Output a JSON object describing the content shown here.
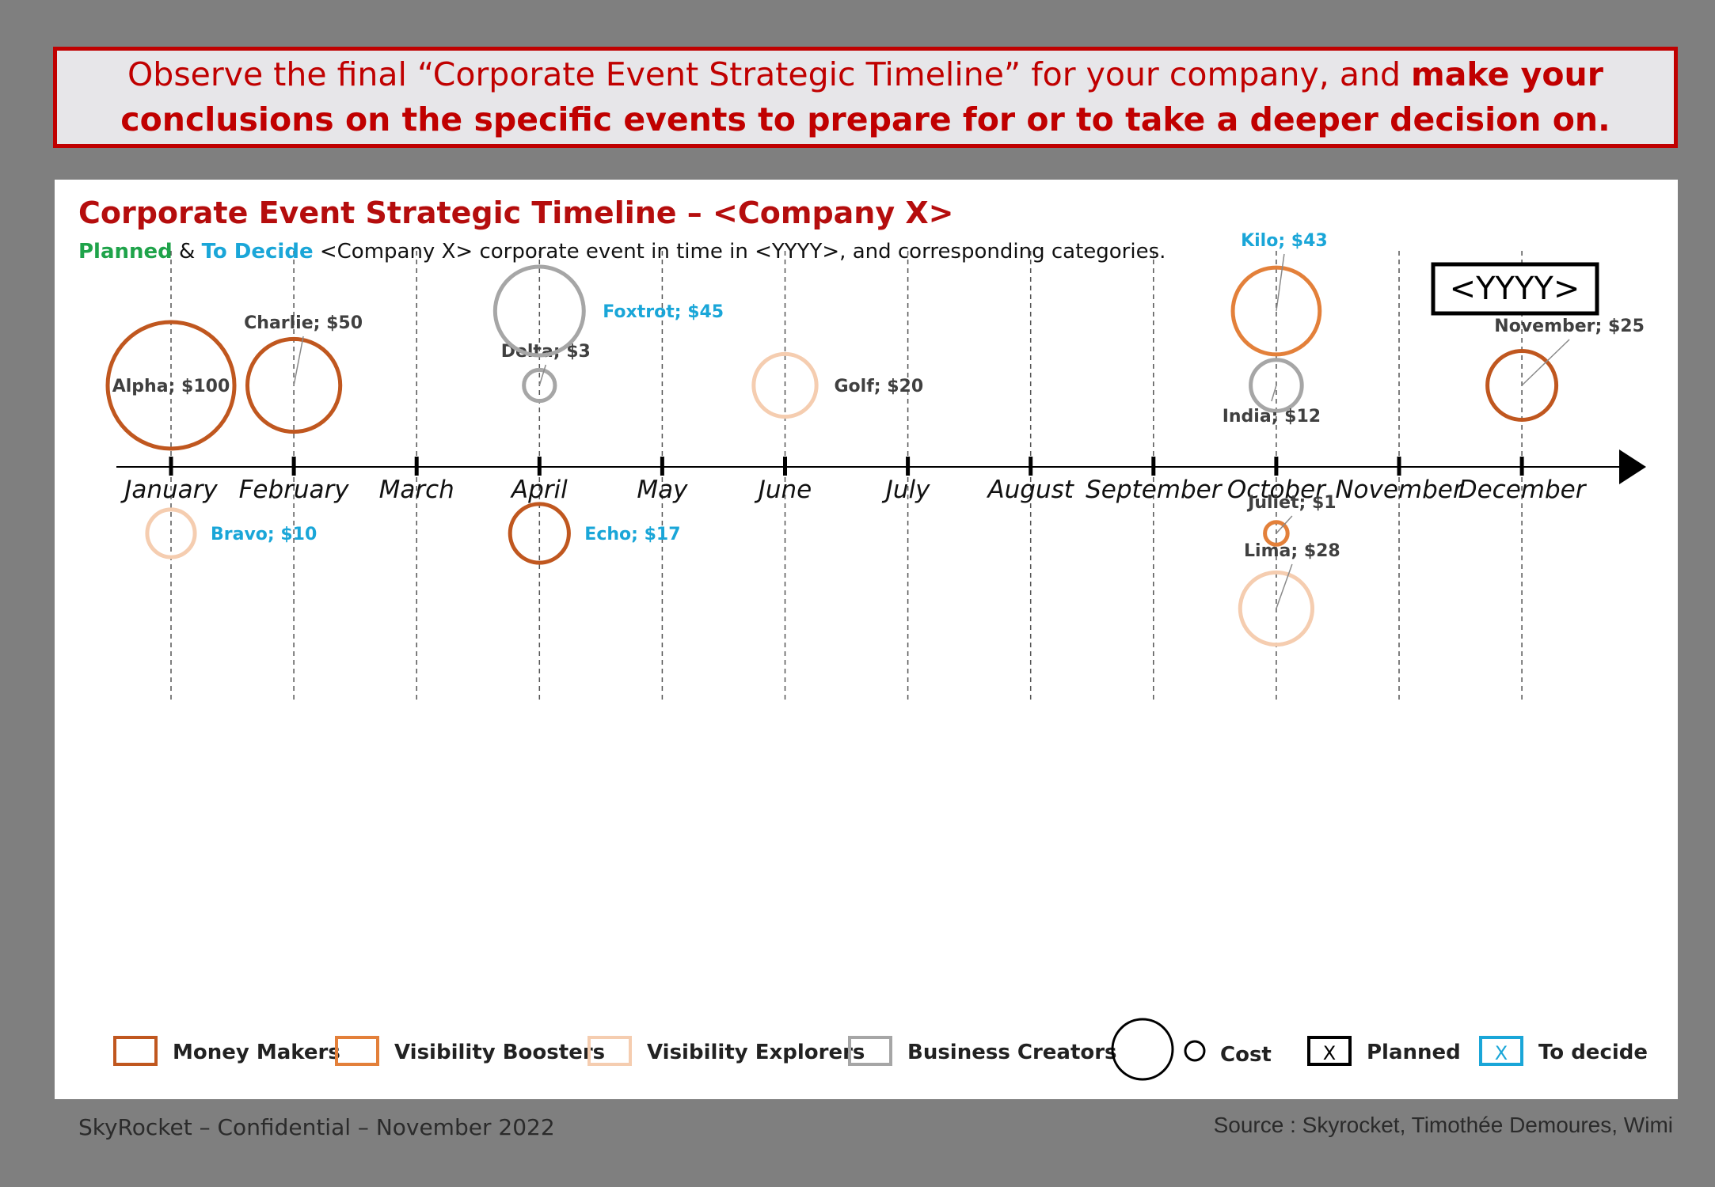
{
  "banner": {
    "line1_regular": "Observe the final “Corporate Event Strategic Timeline” for your company, and ",
    "line1_bold": "make your",
    "line2_bold": "conclusions on the specific events to prepare for or to take a deeper decision on."
  },
  "chart_data": {
    "type": "bubble-timeline",
    "title": "Corporate Event Strategic Timeline – <Company X>",
    "subtitle": {
      "planned": "Planned",
      "amp": " & ",
      "todecide": "To Decide",
      "rest": " <Company X> corporate event in time in <YYYY>, and corresponding categories."
    },
    "year_label": "<YYYY>",
    "months": [
      "January",
      "February",
      "March",
      "April",
      "May",
      "June",
      "July",
      "August",
      "September",
      "October",
      "November",
      "December"
    ],
    "grid": "vertical dashed lines at each month",
    "events": [
      {
        "name": "Alpha",
        "label": "Alpha;  $100",
        "month": "January",
        "cost": 100,
        "category": "Money Makers",
        "status": "Planned",
        "side": "above",
        "level": 1
      },
      {
        "name": "Bravo",
        "label": "Bravo;  $10",
        "month": "January",
        "cost": 10,
        "category": "Visibility Explorers",
        "status": "To decide",
        "side": "below",
        "level": 1
      },
      {
        "name": "Charlie",
        "label": "Charlie;  $50",
        "month": "February",
        "cost": 50,
        "category": "Money Makers",
        "status": "Planned",
        "side": "above",
        "level": 1
      },
      {
        "name": "Delta",
        "label": "Delta;  $3",
        "month": "April",
        "cost": 3,
        "category": "Business Creators",
        "status": "Planned",
        "side": "above",
        "level": 1
      },
      {
        "name": "Echo",
        "label": "Echo;  $17",
        "month": "April",
        "cost": 17,
        "category": "Money Makers",
        "status": "To decide",
        "side": "below",
        "level": 1
      },
      {
        "name": "Foxtrot",
        "label": "Foxtrot;  $45",
        "month": "April",
        "cost": 45,
        "category": "Business Creators",
        "status": "To decide",
        "side": "above",
        "level": 2
      },
      {
        "name": "Golf",
        "label": "Golf;  $20",
        "month": "June",
        "cost": 20,
        "category": "Visibility Explorers",
        "status": "Planned",
        "side": "above",
        "level": 1
      },
      {
        "name": "India",
        "label": "India;  $12",
        "month": "October",
        "cost": 12,
        "category": "Business Creators",
        "status": "Planned",
        "side": "above",
        "level": 1
      },
      {
        "name": "Juliet",
        "label": "Juliet;  $1",
        "month": "October",
        "cost": 1,
        "category": "Visibility Boosters",
        "status": "Planned",
        "side": "below",
        "level": 1
      },
      {
        "name": "Kilo",
        "label": "Kilo;  $43",
        "month": "October",
        "cost": 43,
        "category": "Visibility Boosters",
        "status": "To decide",
        "side": "above",
        "level": 2
      },
      {
        "name": "Lima",
        "label": "Lima;  $28",
        "month": "October",
        "cost": 28,
        "category": "Visibility Explorers",
        "status": "Planned",
        "side": "below",
        "level": 2
      },
      {
        "name": "November",
        "label": "November;  $25",
        "month": "December",
        "cost": 25,
        "category": "Money Makers",
        "status": "Planned",
        "side": "above",
        "level": 1
      }
    ],
    "categories": [
      {
        "name": "Money Makers",
        "color": "#c0571f"
      },
      {
        "name": "Visibility Boosters",
        "color": "#e3803a"
      },
      {
        "name": "Visibility Explorers",
        "color": "#f5cdb0"
      },
      {
        "name": "Business Creators",
        "color": "#a6a6a6"
      }
    ],
    "status_colors": {
      "Planned": "#404040",
      "To decide": "#1aa6d8"
    },
    "legend": {
      "position": "bottom",
      "cost_label": "Cost",
      "planned_box": "X",
      "planned_label": "Planned",
      "todecide_box": "X",
      "todecide_label": "To decide"
    }
  },
  "footer": {
    "left": "SkyRocket – Confidential – November 2022",
    "right": "Source : Skyrocket, Timothée Demoures, Wimi"
  }
}
